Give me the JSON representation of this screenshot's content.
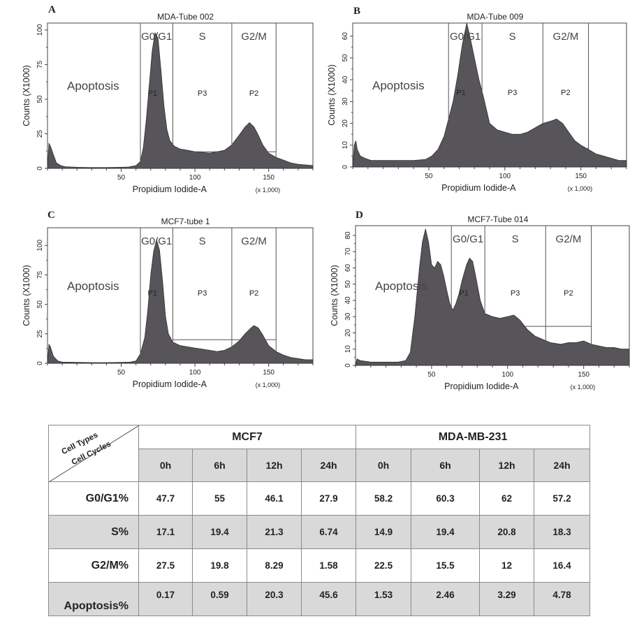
{
  "chart_data": [
    {
      "type": "area",
      "panel_label": "A",
      "title": "MDA-Tube  002",
      "xlabel": "Propidium Iodide-A",
      "x_unit": "(x 1,000)",
      "ylabel": "Counts   (X1000)",
      "xlim": [
        0,
        180
      ],
      "ylim": [
        0,
        105
      ],
      "x_ticks": [
        50,
        100,
        150
      ],
      "y_ticks": [
        0,
        25,
        50,
        75,
        100
      ],
      "gate_labels": {
        "g0g1": "G0/G1",
        "s": "S",
        "g2m": "G2/M",
        "apoptosis": "Apoptosis"
      },
      "gates": [
        {
          "name": "P1",
          "start": 63,
          "end": 85,
          "level": 2
        },
        {
          "name": "P3",
          "start": 85,
          "end": 125,
          "level": 12
        },
        {
          "name": "P2",
          "start": 125,
          "end": 155,
          "level": 12
        }
      ],
      "histogram": [
        [
          0,
          0
        ],
        [
          1,
          18
        ],
        [
          2,
          16
        ],
        [
          4,
          10
        ],
        [
          6,
          4
        ],
        [
          9,
          2
        ],
        [
          12,
          1.2
        ],
        [
          20,
          0.8
        ],
        [
          30,
          0.6
        ],
        [
          40,
          0.6
        ],
        [
          50,
          0.8
        ],
        [
          55,
          1
        ],
        [
          60,
          2
        ],
        [
          63,
          5
        ],
        [
          65,
          15
        ],
        [
          67,
          35
        ],
        [
          69,
          60
        ],
        [
          71,
          85
        ],
        [
          73,
          98
        ],
        [
          75,
          94
        ],
        [
          77,
          70
        ],
        [
          79,
          45
        ],
        [
          81,
          28
        ],
        [
          83,
          20
        ],
        [
          86,
          16
        ],
        [
          90,
          14
        ],
        [
          95,
          13
        ],
        [
          100,
          12
        ],
        [
          105,
          11.5
        ],
        [
          110,
          11
        ],
        [
          115,
          12
        ],
        [
          120,
          13
        ],
        [
          125,
          17
        ],
        [
          130,
          24
        ],
        [
          134,
          30
        ],
        [
          137,
          33
        ],
        [
          140,
          30
        ],
        [
          143,
          24
        ],
        [
          146,
          17
        ],
        [
          150,
          11
        ],
        [
          155,
          8
        ],
        [
          160,
          6
        ],
        [
          165,
          4
        ],
        [
          170,
          3
        ],
        [
          175,
          2.5
        ],
        [
          180,
          2
        ],
        [
          180,
          0
        ]
      ]
    },
    {
      "type": "area",
      "panel_label": "B",
      "title": "MDA-Tube  009",
      "xlabel": "Propidium Iodide-A",
      "x_unit": "(x 1,000)",
      "ylabel": "Counts   (X1000)",
      "xlim": [
        0,
        180
      ],
      "ylim": [
        0,
        66
      ],
      "x_ticks": [
        50,
        100,
        150
      ],
      "y_ticks": [
        0,
        10,
        20,
        30,
        40,
        50,
        60
      ],
      "gate_labels": {
        "g0g1": "G0/G1",
        "s": "S",
        "g2m": "G2/M",
        "apoptosis": "Apoptosis"
      },
      "gates": [
        {
          "name": "P1",
          "start": 63,
          "end": 85,
          "level": 18
        },
        {
          "name": "P3",
          "start": 85,
          "end": 125,
          "level": 1.5
        },
        {
          "name": "P2",
          "start": 125,
          "end": 155,
          "level": 8.5
        }
      ],
      "histogram": [
        [
          0,
          0
        ],
        [
          1,
          10
        ],
        [
          2,
          12
        ],
        [
          3,
          8
        ],
        [
          5,
          5
        ],
        [
          8,
          4
        ],
        [
          12,
          3
        ],
        [
          20,
          3
        ],
        [
          30,
          3
        ],
        [
          40,
          3
        ],
        [
          48,
          3.5
        ],
        [
          52,
          5
        ],
        [
          56,
          8
        ],
        [
          60,
          14
        ],
        [
          63,
          22
        ],
        [
          66,
          30
        ],
        [
          69,
          42
        ],
        [
          72,
          56
        ],
        [
          75,
          66
        ],
        [
          77,
          60
        ],
        [
          80,
          50
        ],
        [
          83,
          40
        ],
        [
          86,
          32
        ],
        [
          90,
          20
        ],
        [
          95,
          17
        ],
        [
          100,
          16
        ],
        [
          105,
          15
        ],
        [
          110,
          15
        ],
        [
          115,
          16
        ],
        [
          120,
          18
        ],
        [
          125,
          20
        ],
        [
          130,
          21
        ],
        [
          134,
          22
        ],
        [
          138,
          20
        ],
        [
          142,
          16
        ],
        [
          146,
          12
        ],
        [
          150,
          10
        ],
        [
          155,
          8
        ],
        [
          160,
          6
        ],
        [
          165,
          5
        ],
        [
          170,
          4
        ],
        [
          175,
          3
        ],
        [
          180,
          3
        ],
        [
          180,
          0
        ]
      ]
    },
    {
      "type": "area",
      "panel_label": "C",
      "title": "MCF7-tube 1",
      "xlabel": "Propidium Iodide-A",
      "x_unit": "(x 1,000)",
      "ylabel": "Counts   (X1000)",
      "xlim": [
        0,
        180
      ],
      "ylim": [
        0,
        115
      ],
      "x_ticks": [
        50,
        100,
        150
      ],
      "y_ticks": [
        0,
        25,
        50,
        75,
        100
      ],
      "gate_labels": {
        "g0g1": "G0/G1",
        "s": "S",
        "g2m": "G2/M",
        "apoptosis": "Apoptosis"
      },
      "gates": [
        {
          "name": "P1",
          "start": 63,
          "end": 85,
          "level": 2
        },
        {
          "name": "P3",
          "start": 85,
          "end": 125,
          "level": 20
        },
        {
          "name": "P2",
          "start": 125,
          "end": 155,
          "level": 20
        }
      ],
      "histogram": [
        [
          0,
          0
        ],
        [
          1,
          16
        ],
        [
          2,
          14
        ],
        [
          4,
          6
        ],
        [
          7,
          2
        ],
        [
          10,
          1
        ],
        [
          20,
          0.8
        ],
        [
          30,
          0.6
        ],
        [
          40,
          0.6
        ],
        [
          50,
          0.8
        ],
        [
          56,
          1
        ],
        [
          60,
          2
        ],
        [
          63,
          8
        ],
        [
          66,
          22
        ],
        [
          68,
          45
        ],
        [
          70,
          75
        ],
        [
          72,
          95
        ],
        [
          74,
          105
        ],
        [
          76,
          96
        ],
        [
          78,
          70
        ],
        [
          80,
          40
        ],
        [
          82,
          25
        ],
        [
          85,
          18
        ],
        [
          90,
          15
        ],
        [
          95,
          14
        ],
        [
          100,
          13
        ],
        [
          105,
          12
        ],
        [
          110,
          11
        ],
        [
          115,
          10
        ],
        [
          120,
          11
        ],
        [
          125,
          14
        ],
        [
          130,
          19
        ],
        [
          134,
          25
        ],
        [
          138,
          30
        ],
        [
          140,
          32
        ],
        [
          143,
          30
        ],
        [
          146,
          24
        ],
        [
          150,
          15
        ],
        [
          155,
          10
        ],
        [
          160,
          7
        ],
        [
          165,
          5
        ],
        [
          170,
          4
        ],
        [
          175,
          3
        ],
        [
          180,
          3
        ],
        [
          180,
          0
        ]
      ]
    },
    {
      "type": "area",
      "panel_label": "D",
      "title": "MCF7-Tube  014",
      "xlabel": "Propidium Iodide-A",
      "x_unit": "(x 1,000)",
      "ylabel": "Counts   (X1000)",
      "xlim": [
        0,
        180
      ],
      "ylim": [
        0,
        86
      ],
      "x_ticks": [
        50,
        100,
        150
      ],
      "y_ticks": [
        0,
        10,
        20,
        30,
        40,
        50,
        60,
        70,
        80
      ],
      "gate_labels": {
        "g0g1": "G0/G1",
        "s": "S",
        "g2m": "G2/M",
        "apoptosis": "Apoptosis"
      },
      "gates": [
        {
          "name": "P1",
          "start": 63,
          "end": 85,
          "level": 4
        },
        {
          "name": "P3",
          "start": 85,
          "end": 125,
          "level": 24
        },
        {
          "name": "P2",
          "start": 125,
          "end": 155,
          "level": 24
        }
      ],
      "histogram": [
        [
          0,
          0
        ],
        [
          1,
          4
        ],
        [
          3,
          3
        ],
        [
          10,
          2
        ],
        [
          20,
          2
        ],
        [
          28,
          2
        ],
        [
          33,
          3
        ],
        [
          36,
          8
        ],
        [
          39,
          30
        ],
        [
          42,
          60
        ],
        [
          44,
          76
        ],
        [
          46,
          84
        ],
        [
          48,
          76
        ],
        [
          50,
          62
        ],
        [
          52,
          60
        ],
        [
          54,
          64
        ],
        [
          56,
          62
        ],
        [
          58,
          55
        ],
        [
          60,
          46
        ],
        [
          62,
          38
        ],
        [
          64,
          34
        ],
        [
          66,
          38
        ],
        [
          68,
          44
        ],
        [
          70,
          52
        ],
        [
          73,
          62
        ],
        [
          75,
          66
        ],
        [
          77,
          64
        ],
        [
          79,
          55
        ],
        [
          82,
          40
        ],
        [
          85,
          32
        ],
        [
          90,
          30
        ],
        [
          95,
          29
        ],
        [
          100,
          30
        ],
        [
          104,
          31
        ],
        [
          108,
          28
        ],
        [
          113,
          22
        ],
        [
          118,
          18
        ],
        [
          123,
          16
        ],
        [
          128,
          14
        ],
        [
          135,
          13
        ],
        [
          140,
          14
        ],
        [
          145,
          14
        ],
        [
          150,
          15
        ],
        [
          155,
          13
        ],
        [
          160,
          12
        ],
        [
          165,
          11
        ],
        [
          170,
          11
        ],
        [
          175,
          10
        ],
        [
          180,
          10
        ],
        [
          180,
          0
        ]
      ]
    }
  ],
  "table": {
    "corner_top": "Cell Types",
    "corner_bottom": "Cell Cycles",
    "groups": [
      "MCF7",
      "MDA-MB-231"
    ],
    "hours": [
      "0h",
      "6h",
      "12h",
      "24h",
      "0h",
      "6h",
      "12h",
      "24h"
    ],
    "rows": [
      {
        "label": "G0/G1%",
        "values": [
          "47.7",
          "55",
          "46.1",
          "27.9",
          "58.2",
          "60.3",
          "62",
          "57.2"
        ]
      },
      {
        "label": "S%",
        "values": [
          "17.1",
          "19.4",
          "21.3",
          "6.74",
          "14.9",
          "19.4",
          "20.8",
          "18.3"
        ]
      },
      {
        "label": "G2/M%",
        "values": [
          "27.5",
          "19.8",
          "8.29",
          "1.58",
          "22.5",
          "15.5",
          "12",
          "16.4"
        ]
      },
      {
        "label": "Apoptosis%",
        "values": [
          "0.17",
          "0.59",
          "20.3",
          "45.6",
          "1.53",
          "2.46",
          "3.29",
          "4.78"
        ]
      }
    ]
  }
}
